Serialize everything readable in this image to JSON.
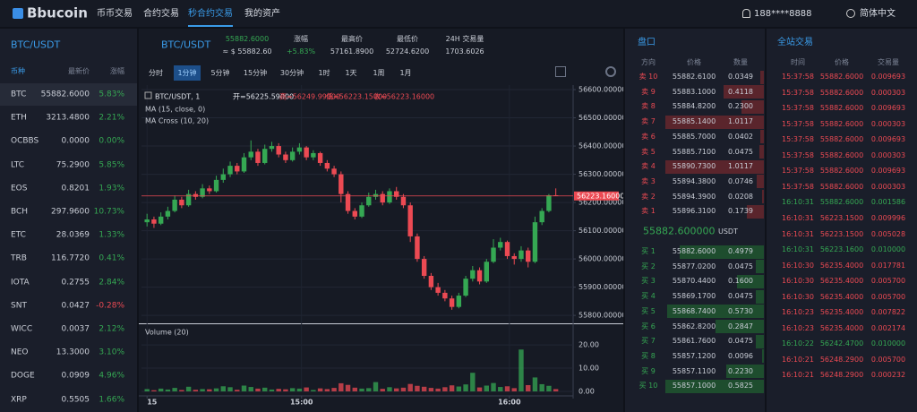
{
  "nav": {
    "logo": "Bbucoin",
    "items": [
      "币币交易",
      "合约交易",
      "秒合约交易",
      "我的资产"
    ],
    "active": 2,
    "user": "188****8888",
    "lang": "简体中文"
  },
  "market": {
    "title": "BTC/USDT",
    "headers": [
      "币种",
      "最新价",
      "涨幅"
    ],
    "active": 0,
    "rows": [
      [
        "BTC",
        "55882.6000",
        "5.83%"
      ],
      [
        "ETH",
        "3213.4800",
        "2.21%"
      ],
      [
        "OCBBS",
        "0.0000",
        "0.00%"
      ],
      [
        "LTC",
        "75.2900",
        "5.85%"
      ],
      [
        "EOS",
        "0.8201",
        "1.93%"
      ],
      [
        "BCH",
        "297.9600",
        "10.73%"
      ],
      [
        "ETC",
        "28.0369",
        "1.33%"
      ],
      [
        "TRB",
        "116.7720",
        "0.41%"
      ],
      [
        "IOTA",
        "0.2755",
        "2.84%"
      ],
      [
        "SNT",
        "0.0427",
        "-0.28%"
      ],
      [
        "WICC",
        "0.0037",
        "2.12%"
      ],
      [
        "NEO",
        "13.3000",
        "3.10%"
      ],
      [
        "DOGE",
        "0.0909",
        "4.96%"
      ],
      [
        "XRP",
        "0.5505",
        "1.66%"
      ]
    ]
  },
  "ticker": {
    "pair": "BTC/USDT",
    "price": "55882.6000",
    "approx": "≈ $ 55882.60",
    "change_label": "涨幅",
    "change": "+5.83%",
    "high_label": "最高价",
    "high": "57161.8900",
    "low_label": "最低价",
    "low": "52724.6200",
    "vol_label": "24H 交易量",
    "vol": "1703.6026"
  },
  "timeframes": {
    "items": [
      "分时",
      "1分钟",
      "5分钟",
      "15分钟",
      "30分钟",
      "1时",
      "1天",
      "1周",
      "1月"
    ],
    "active": 1
  },
  "chart_data": {
    "type": "candlestick",
    "legend_title": "BTC/USDT, 1",
    "ohlc_labels": [
      "开=56225.59000",
      "高=56249.99000",
      "低=56223.15000",
      "收=56223.16000"
    ],
    "indicators": [
      "MA (15, close, 0)",
      "MA Cross (10, 20)"
    ],
    "volume_title": "Volume (20)",
    "up_color": "#35a853",
    "down_color": "#ec4a53",
    "grid": true,
    "candles": [
      [
        56130,
        56160,
        56115,
        56140
      ],
      [
        56140,
        56150,
        56110,
        56125
      ],
      [
        56125,
        56165,
        56120,
        56150
      ],
      [
        56150,
        56185,
        56140,
        56170
      ],
      [
        56170,
        56225,
        56165,
        56210
      ],
      [
        56210,
        56220,
        56180,
        56190
      ],
      [
        56190,
        56245,
        56185,
        56230
      ],
      [
        56230,
        56240,
        56210,
        56220
      ],
      [
        56220,
        56265,
        56215,
        56250
      ],
      [
        56250,
        56260,
        56230,
        56240
      ],
      [
        56240,
        56295,
        56235,
        56280
      ],
      [
        56280,
        56320,
        56270,
        56300
      ],
      [
        56300,
        56345,
        56290,
        56330
      ],
      [
        56330,
        56340,
        56300,
        56310
      ],
      [
        56310,
        56375,
        56305,
        56360
      ],
      [
        56360,
        56420,
        56350,
        56380
      ],
      [
        56380,
        56390,
        56330,
        56340
      ],
      [
        56340,
        56405,
        56335,
        56390
      ],
      [
        56390,
        56415,
        56380,
        56400
      ],
      [
        56400,
        56410,
        56360,
        56370
      ],
      [
        56370,
        56380,
        56340,
        56350
      ],
      [
        56350,
        56395,
        56345,
        56380
      ],
      [
        56380,
        56410,
        56370,
        56395
      ],
      [
        56395,
        56400,
        56350,
        56360
      ],
      [
        56360,
        56385,
        56350,
        56375
      ],
      [
        56375,
        56380,
        56330,
        56340
      ],
      [
        56340,
        56350,
        56310,
        56320
      ],
      [
        56320,
        56330,
        56290,
        56300
      ],
      [
        56300,
        56310,
        56200,
        56230
      ],
      [
        56230,
        56240,
        56160,
        56170
      ],
      [
        56170,
        56180,
        56140,
        56150
      ],
      [
        56150,
        56200,
        56145,
        56190
      ],
      [
        56190,
        56235,
        56185,
        56220
      ],
      [
        56220,
        56245,
        56210,
        56230
      ],
      [
        56230,
        56240,
        56190,
        56200
      ],
      [
        56200,
        56250,
        56195,
        56240
      ],
      [
        56240,
        56255,
        56210,
        56220
      ],
      [
        56220,
        56230,
        56180,
        56190
      ],
      [
        56190,
        56200,
        56060,
        56080
      ],
      [
        56080,
        56090,
        55990,
        56000
      ],
      [
        56000,
        56010,
        55930,
        55940
      ],
      [
        55940,
        55950,
        55890,
        55900
      ],
      [
        55900,
        55915,
        55870,
        55880
      ],
      [
        55880,
        55890,
        55850,
        55860
      ],
      [
        55860,
        55870,
        55820,
        55830
      ],
      [
        55830,
        55880,
        55825,
        55870
      ],
      [
        55870,
        55940,
        55865,
        55930
      ],
      [
        55930,
        55975,
        55920,
        55960
      ],
      [
        55960,
        55970,
        55910,
        55920
      ],
      [
        55920,
        56000,
        55915,
        55990
      ],
      [
        55990,
        56070,
        55985,
        56040
      ],
      [
        56040,
        56075,
        56030,
        56060
      ],
      [
        56060,
        56065,
        56000,
        56010
      ],
      [
        56010,
        56020,
        55980,
        56000
      ],
      [
        56000,
        56045,
        55990,
        56030
      ],
      [
        56030,
        56040,
        55970,
        55990
      ],
      [
        55990,
        56150,
        55985,
        56130
      ],
      [
        56130,
        56180,
        56120,
        56170
      ],
      [
        56170,
        56230,
        56165,
        56225.59
      ],
      [
        56225.59,
        56249.99,
        56223.15,
        56223.16
      ]
    ],
    "volume": [
      1,
      0.5,
      1.2,
      0.8,
      1.5,
      0.6,
      2,
      0.7,
      1,
      0.9,
      1.3,
      2.2,
      1.8,
      0.7,
      2.5,
      1.9,
      1.2,
      1.6,
      0.8,
      1.1,
      0.9,
      1.4,
      1.2,
      1.7,
      0.6,
      1.3,
      1,
      1.5,
      3.5,
      2.8,
      1.6,
      1.2,
      1.4,
      4,
      1.1,
      1.8,
      1.3,
      1.6,
      3.2,
      2.4,
      2,
      1.5,
      1.2,
      1.8,
      2.6,
      2.1,
      3,
      8,
      1.7,
      2.5,
      3.6,
      1.9,
      2.2,
      1.4,
      18,
      2.7,
      6,
      3.1,
      2.4,
      1
    ],
    "ylim": [
      55775,
      56616
    ],
    "yticks": [
      {
        "value": 56600,
        "label": "56600.000000"
      },
      {
        "value": 56500,
        "label": "56500.000000"
      },
      {
        "value": 56400,
        "label": "56400.000000"
      },
      {
        "value": 56300,
        "label": "56300.000000"
      },
      {
        "value": 56200,
        "label": "56200.000000"
      },
      {
        "value": 56100,
        "label": "56100.000000"
      },
      {
        "value": 56000,
        "label": "56000.000000"
      },
      {
        "value": 55900,
        "label": "55900.000000"
      },
      {
        "value": 55800,
        "label": "55800.000000"
      }
    ],
    "last_price": {
      "value": 56223.16,
      "label": "56223.16000"
    },
    "volume_ylim": [
      0,
      28.5
    ],
    "volume_yticks": [
      {
        "value": 20,
        "label": "20.00"
      },
      {
        "value": 10,
        "label": "10.00"
      },
      {
        "value": 0,
        "label": "0.00"
      }
    ],
    "xlim": [
      -0.8,
      61.5
    ],
    "xticks": [
      {
        "value": 0,
        "label": "15"
      },
      {
        "value": 22.3,
        "label": "15:00"
      },
      {
        "value": 52.3,
        "label": "16:00"
      }
    ]
  },
  "orderbook": {
    "title": "盘口",
    "headers": [
      "方向",
      "价格",
      "数量"
    ],
    "asks": [
      [
        "卖 10",
        "55882.6100",
        "0.0349"
      ],
      [
        "卖 9",
        "55883.1000",
        "0.4118"
      ],
      [
        "卖 8",
        "55884.8200",
        "0.2300"
      ],
      [
        "卖 7",
        "55885.1400",
        "1.0117"
      ],
      [
        "卖 6",
        "55885.7000",
        "0.0402"
      ],
      [
        "卖 5",
        "55885.7100",
        "0.0475"
      ],
      [
        "卖 4",
        "55890.7300",
        "1.0117"
      ],
      [
        "卖 3",
        "55894.3800",
        "0.0746"
      ],
      [
        "卖 2",
        "55894.3900",
        "0.0208"
      ],
      [
        "卖 1",
        "55896.3100",
        "0.1739"
      ]
    ],
    "mid_price": "55882.600000",
    "mid_unit": "USDT",
    "bids": [
      [
        "买 1",
        "55882.6000",
        "0.4979"
      ],
      [
        "买 2",
        "55877.0200",
        "0.0475"
      ],
      [
        "买 3",
        "55870.4400",
        "0.1600"
      ],
      [
        "买 4",
        "55869.1700",
        "0.0475"
      ],
      [
        "买 5",
        "55868.7400",
        "0.5730"
      ],
      [
        "买 6",
        "55862.8200",
        "0.2847"
      ],
      [
        "买 7",
        "55861.7600",
        "0.0475"
      ],
      [
        "买 8",
        "55857.1200",
        "0.0096"
      ],
      [
        "买 9",
        "55857.1100",
        "0.2230"
      ],
      [
        "买 10",
        "55857.1000",
        "0.5825"
      ]
    ]
  },
  "trades": {
    "title": "全站交易",
    "headers": [
      "时间",
      "价格",
      "交易量"
    ],
    "rows": [
      [
        "15:37:58",
        "55882.6000",
        "0.009693",
        "#ec4a53"
      ],
      [
        "15:37:58",
        "55882.6000",
        "0.000303",
        "#ec4a53"
      ],
      [
        "15:37:58",
        "55882.6000",
        "0.009693",
        "#ec4a53"
      ],
      [
        "15:37:58",
        "55882.6000",
        "0.000303",
        "#ec4a53"
      ],
      [
        "15:37:58",
        "55882.6000",
        "0.009693",
        "#ec4a53"
      ],
      [
        "15:37:58",
        "55882.6000",
        "0.000303",
        "#ec4a53"
      ],
      [
        "15:37:58",
        "55882.6000",
        "0.009693",
        "#ec4a53"
      ],
      [
        "15:37:58",
        "55882.6000",
        "0.000303",
        "#ec4a53"
      ],
      [
        "16:10:31",
        "55882.6000",
        "0.001586",
        "#35a853"
      ],
      [
        "16:10:31",
        "56223.1500",
        "0.009996",
        "#ec4a53"
      ],
      [
        "16:10:31",
        "56223.1500",
        "0.005028",
        "#ec4a53"
      ],
      [
        "16:10:31",
        "56223.1600",
        "0.010000",
        "#35a853"
      ],
      [
        "16:10:30",
        "56235.4000",
        "0.017781",
        "#ec4a53"
      ],
      [
        "16:10:30",
        "56235.4000",
        "0.005700",
        "#ec4a53"
      ],
      [
        "16:10:30",
        "56235.4000",
        "0.005700",
        "#ec4a53"
      ],
      [
        "16:10:23",
        "56235.4000",
        "0.007822",
        "#ec4a53"
      ],
      [
        "16:10:23",
        "56235.4000",
        "0.002174",
        "#ec4a53"
      ],
      [
        "16:10:22",
        "56242.4700",
        "0.010000",
        "#35a853"
      ],
      [
        "16:10:21",
        "56248.2900",
        "0.005700",
        "#ec4a53"
      ],
      [
        "16:10:21",
        "56248.2900",
        "0.000232",
        "#ec4a53"
      ]
    ]
  }
}
